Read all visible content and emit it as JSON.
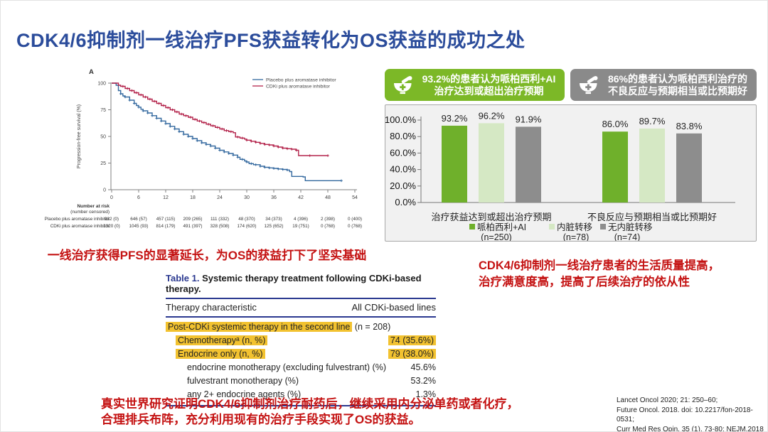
{
  "title": "CDK4/6抑制剂一线治疗PFS获益转化为OS获益的成功之处",
  "banners": [
    {
      "text": "93.2%的患者认为哌柏西利+AI治疗达到或超出治疗预期",
      "color": "#7cb827"
    },
    {
      "text": "86%的患者认为哌柏西利治疗的不良反应与预期相当或比预期好",
      "color": "#8a8a8a"
    }
  ],
  "captions": {
    "left": "一线治疗获得PFS的显著延长，为OS的获益打下了坚实基础",
    "right": [
      "CDK4/6抑制剂一线治疗患者的生活质量提高，",
      "治疗满意度高，提高了后续治疗的依从性"
    ],
    "bottom": [
      "真实世界研究证明CDK4/6抑制剂治疗耐药后，继续采用内分泌单药或者化疗，",
      "合理排兵布阵，充分利用现有的治疗手段实现了OS的获益。"
    ]
  },
  "references": [
    "Lancet Oncol 2020; 21: 250–60;",
    "Future Oncol. 2018. doi: 10.2217/fon-2018-0531;",
    "Curr Med Res Opin, 35 (1), 73-80;  NEJM,2018"
  ],
  "table": {
    "caption_label": "Table 1.",
    "caption_text": " Systemic therapy treatment following CDKi-based therapy.",
    "col1": "Therapy characteristic",
    "col2": "All CDKi-based lines",
    "rows": [
      {
        "label": "Post-CDKi systemic therapy in the second line",
        "suffix": " (n = 208)",
        "value": "",
        "indent": 0,
        "hl_label": true,
        "hl_value": false
      },
      {
        "label": "Chemotherapyᵃ (n, %)",
        "suffix": "",
        "value": "74 (35.6%)",
        "indent": 1,
        "hl_label": true,
        "hl_value": true
      },
      {
        "label": "Endocrine only (n, %)",
        "suffix": "",
        "value": "79 (38.0%)",
        "indent": 1,
        "hl_label": true,
        "hl_value": true
      },
      {
        "label": "endocrine monotherapy (excluding fulvestrant) (%)",
        "suffix": "",
        "value": "45.6%",
        "indent": 2,
        "hl_label": false,
        "hl_value": false
      },
      {
        "label": "fulvestrant monotherapy (%)",
        "suffix": "",
        "value": "53.2%",
        "indent": 2,
        "hl_label": false,
        "hl_value": false
      },
      {
        "label": "any 2+ endocrine agents (%)",
        "suffix": "",
        "value": "1.3%",
        "indent": 2,
        "hl_label": false,
        "hl_value": false
      }
    ]
  },
  "chart_data": [
    {
      "type": "line",
      "subtype": "kaplan-meier",
      "panel_label": "A",
      "ylabel": "Progression-free survival (%)",
      "xlabel": "",
      "ylim": [
        0,
        100
      ],
      "xlim": [
        0,
        54
      ],
      "yticks": [
        0,
        25,
        50,
        75,
        100
      ],
      "xticks": [
        0,
        6,
        12,
        18,
        24,
        30,
        36,
        42,
        48,
        54
      ],
      "legend_position": "top-right",
      "grid": false,
      "series": [
        {
          "name": "Placebo plus aromatase inhibitor",
          "color": "#34699f",
          "points": [
            [
              0,
              100
            ],
            [
              1,
              98
            ],
            [
              1.5,
              93
            ],
            [
              2,
              90
            ],
            [
              2.5,
              88
            ],
            [
              3,
              87
            ],
            [
              4,
              84
            ],
            [
              5,
              81
            ],
            [
              5.5,
              79
            ],
            [
              6,
              77.5
            ],
            [
              6.5,
              75.5
            ],
            [
              7,
              74
            ],
            [
              8,
              72
            ],
            [
              9,
              69.5
            ],
            [
              10,
              67
            ],
            [
              11,
              64.5
            ],
            [
              12,
              62
            ],
            [
              13,
              59.5
            ],
            [
              14,
              57
            ],
            [
              15,
              54.5
            ],
            [
              16,
              52
            ],
            [
              17,
              50
            ],
            [
              18,
              48
            ],
            [
              19,
              46
            ],
            [
              20,
              44
            ],
            [
              21,
              42.5
            ],
            [
              22,
              41
            ],
            [
              23,
              39
            ],
            [
              24,
              37
            ],
            [
              25,
              35.5
            ],
            [
              26,
              34
            ],
            [
              27,
              32.5
            ],
            [
              28,
              30.5
            ],
            [
              28.5,
              28.5
            ],
            [
              29.5,
              27
            ],
            [
              30,
              26
            ],
            [
              30.5,
              24.5
            ],
            [
              31.5,
              23.5
            ],
            [
              33,
              22
            ],
            [
              34,
              21
            ],
            [
              35,
              20.5
            ],
            [
              36,
              20
            ],
            [
              37,
              19.5
            ],
            [
              38,
              19
            ],
            [
              39,
              18.5
            ],
            [
              39.5,
              17
            ],
            [
              40,
              12.5
            ],
            [
              42.5,
              12
            ],
            [
              43,
              8.5
            ],
            [
              51,
              8.5
            ]
          ],
          "censors": [
            2,
            3,
            4,
            5,
            6,
            7,
            8,
            9,
            10,
            11,
            12,
            13,
            14,
            15,
            16,
            17,
            18,
            19,
            20,
            21,
            22,
            23,
            24,
            25,
            26,
            27,
            28,
            29,
            30,
            31,
            32,
            33,
            34,
            35,
            36,
            37,
            38,
            39,
            51
          ]
        },
        {
          "name": "CDKi plus aromatase inhibitor",
          "color": "#b3224a",
          "points": [
            [
              0,
              100
            ],
            [
              1.5,
              98
            ],
            [
              2,
              97
            ],
            [
              3,
              95
            ],
            [
              4,
              93
            ],
            [
              5,
              91
            ],
            [
              6,
              89
            ],
            [
              7,
              87
            ],
            [
              8,
              85
            ],
            [
              9,
              83
            ],
            [
              10,
              81
            ],
            [
              11,
              79
            ],
            [
              12,
              77
            ],
            [
              13,
              75
            ],
            [
              14,
              73
            ],
            [
              15,
              71
            ],
            [
              16,
              69.5
            ],
            [
              17,
              68
            ],
            [
              18,
              66
            ],
            [
              19,
              64.5
            ],
            [
              20,
              63
            ],
            [
              21,
              61.5
            ],
            [
              22,
              60
            ],
            [
              23,
              58.5
            ],
            [
              24,
              57
            ],
            [
              25,
              55.5
            ],
            [
              26,
              54.5
            ],
            [
              27,
              53.5
            ],
            [
              27.5,
              49.5
            ],
            [
              28.5,
              48.5
            ],
            [
              29.5,
              47.5
            ],
            [
              30,
              46.5
            ],
            [
              31,
              45.5
            ],
            [
              32,
              44.5
            ],
            [
              33,
              43.5
            ],
            [
              34,
              42.5
            ],
            [
              35,
              42
            ],
            [
              36,
              41
            ],
            [
              37,
              40
            ],
            [
              38,
              39
            ],
            [
              39,
              38.5
            ],
            [
              40,
              38
            ],
            [
              41,
              37
            ],
            [
              41.5,
              32
            ],
            [
              48,
              32
            ]
          ],
          "censors": [
            2.5,
            3.5,
            4.5,
            5.5,
            6.5,
            7.5,
            8.5,
            9.5,
            10.5,
            11.5,
            12.5,
            13.5,
            14.5,
            15.5,
            16.5,
            17.5,
            18.5,
            19.5,
            20.5,
            21.5,
            22.5,
            23.5,
            24.5,
            25.5,
            26.5,
            28,
            29,
            30,
            31,
            32,
            33,
            34,
            35,
            36,
            37,
            38,
            39,
            40,
            41,
            44,
            48
          ]
        }
      ],
      "risk_table": {
        "title": "Number at risk",
        "subtitle": "(number censored)",
        "rows": [
          {
            "label": "Placebo plus aromatase inhibitor",
            "values": [
              "932 (0)",
              "646 (57)",
              "457 (115)",
              "209 (265)",
              "111 (332)",
              "48 (370)",
              "34 (373)",
              "4 (396)",
              "2 (398)",
              "0 (400)"
            ]
          },
          {
            "label": "CDKi plus aromatase inhibitor",
            "values": [
              "1320 (0)",
              "1045 (93)",
              "814 (179)",
              "491 (397)",
              "328 (508)",
              "174 (620)",
              "125 (652)",
              "19 (751)",
              "0 (768)",
              "0 (768)"
            ]
          }
        ]
      }
    },
    {
      "type": "bar",
      "ylim": [
        0,
        100
      ],
      "ytick_labels": [
        "0.0%",
        "20.0%",
        "40.0%",
        "60.0%",
        "80.0%",
        "100.0%"
      ],
      "yticks": [
        0,
        20,
        40,
        60,
        80,
        100
      ],
      "grid": false,
      "legend_position": "bottom",
      "groups": [
        "治疗获益达到或超出治疗预期",
        "不良反应与预期相当或比预期好"
      ],
      "series": [
        {
          "name": "哌柏西利+AI",
          "n": "(n=250)",
          "color": "#6fb02b",
          "values": [
            93.2,
            86.0
          ],
          "labels": [
            "93.2%",
            "86.0%"
          ]
        },
        {
          "name": "内脏转移",
          "n": "(n=78)",
          "color": "#d5e8c4",
          "values": [
            96.2,
            89.7
          ],
          "labels": [
            "96.2%",
            "89.7%"
          ]
        },
        {
          "name": "无内脏转移",
          "n": "(n=74)",
          "color": "#8d8d8d",
          "values": [
            91.9,
            83.8
          ],
          "labels": [
            "91.9%",
            "83.8%"
          ]
        }
      ]
    }
  ]
}
